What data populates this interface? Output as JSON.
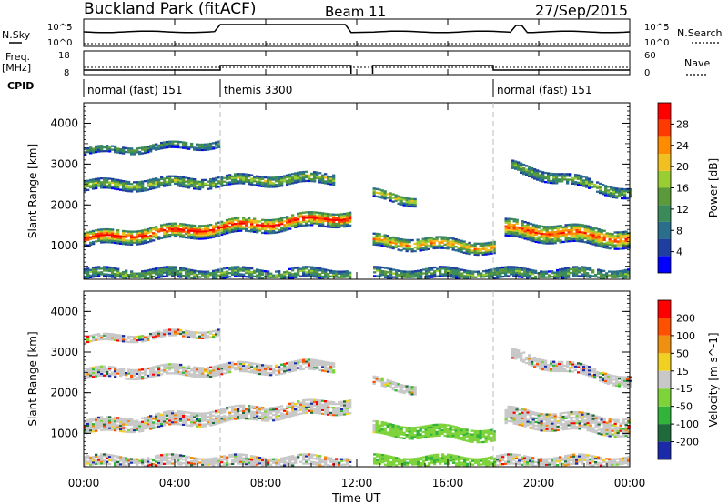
{
  "header": {
    "station": "Buckland Park (fitACF)",
    "beam": "Beam 11",
    "date": "27/Sep/2015"
  },
  "status_panels": {
    "nsky_label": "N.Sky",
    "nsky_tick_top": "10^5",
    "nsky_tick_bottom": "10^0",
    "nsearch_label": "N.Search",
    "nsearch_tick_top": "10^5",
    "nsearch_tick_bottom": "10^0",
    "freq_label": "Freq.",
    "freq_unit": "[MHz]",
    "freq_tick_top": "18",
    "freq_tick_bottom": "8",
    "nave_label": "Nave",
    "nave_tick_top": "60",
    "nave_tick_bottom": "0",
    "cpid_label": "CPID",
    "modes": [
      {
        "label": "normal (fast) 151",
        "start_h": 0,
        "end_h": 6
      },
      {
        "label": "themis 3300",
        "start_h": 6,
        "end_h": 18
      },
      {
        "label": "normal (fast) 151",
        "start_h": 18,
        "end_h": 24
      }
    ]
  },
  "chart_data": [
    {
      "type": "heatmap",
      "panel": "power",
      "ylabel": "Slant Range [km]",
      "ylim": [
        180,
        4500
      ],
      "yticks": [
        "1000",
        "2000",
        "3000",
        "4000"
      ],
      "colorbar_label": "Power [dB]",
      "colorbar_ticks": [
        "4",
        "8",
        "12",
        "16",
        "20",
        "24",
        "28"
      ],
      "colors": [
        "#0000ff",
        "#1f3fa0",
        "#2a6e8c",
        "#3a8a5a",
        "#5a9a3a",
        "#9acd32",
        "#f0c020",
        "#ff8c00",
        "#ff3a00",
        "#ff0000"
      ],
      "data_gaps_h": [
        [
          11.75,
          12.7
        ]
      ]
    },
    {
      "type": "heatmap",
      "panel": "velocity",
      "ylabel": "Slant Range [km]",
      "ylim": [
        180,
        4500
      ],
      "yticks": [
        "1000",
        "2000",
        "3000",
        "4000"
      ],
      "colorbar_label": "Velocity [m s^-1]",
      "colorbar_ticks": [
        "200",
        "100",
        "50",
        "15",
        "-15",
        "-50",
        "-100",
        "-200"
      ],
      "colors": [
        "#1a2aa8",
        "#1e6a3a",
        "#32b43c",
        "#7ed23a",
        "#c8c8c8",
        "#f0d020",
        "#f09010",
        "#ff5000",
        "#ff0000"
      ],
      "data_gaps_h": [
        [
          11.75,
          12.7
        ]
      ]
    }
  ],
  "x_axis": {
    "label": "Time UT",
    "ticks": [
      "00:00",
      "04:00",
      "08:00",
      "12:00",
      "16:00",
      "20:00",
      "00:00"
    ],
    "range_h": [
      0,
      24
    ]
  }
}
